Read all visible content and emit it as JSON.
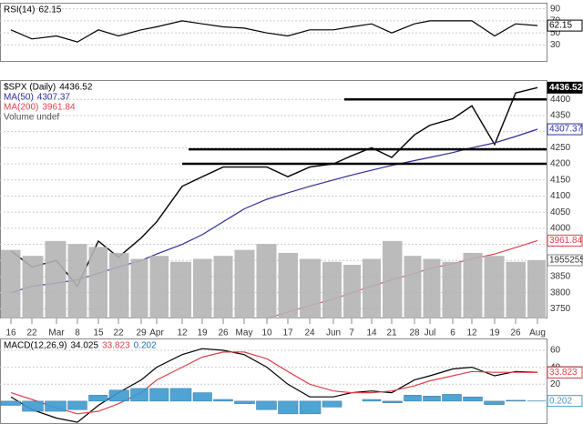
{
  "chart_data": [
    {
      "type": "line",
      "title": "RSI(14)",
      "ylim": [
        2,
        100
      ],
      "yticks": [
        90,
        70,
        50,
        30
      ],
      "grid": true,
      "series": [
        {
          "color": "#000000",
          "values": [
            55,
            40,
            45,
            35,
            55,
            45,
            55,
            60,
            70,
            65,
            60,
            58,
            50,
            45,
            55,
            55,
            60,
            65,
            50,
            65,
            70,
            70,
            70,
            45,
            65,
            62.15
          ]
        }
      ]
    },
    {
      "type": "line",
      "ylim": [
        3720,
        4460
      ],
      "yticks": [
        4400,
        4350,
        4300,
        4250,
        4200,
        4150,
        4100,
        4050,
        4000,
        3950,
        3900,
        3850,
        3800,
        3750
      ],
      "grid": true,
      "y2lim": [
        0,
        8000000
      ],
      "categories": [
        "16",
        "22",
        "Mar",
        "8",
        "15",
        "22",
        "29",
        "Apr",
        "12",
        "19",
        "26",
        "May",
        "10",
        "17",
        "24",
        "Jun",
        "7",
        "14",
        "21",
        "28",
        "Jul",
        "6",
        "12",
        "19",
        "26",
        "Aug"
      ],
      "hlines": [
        4400,
        4245,
        4200
      ],
      "series": [
        {
          "name": "$SPX (Daily)",
          "color": "#000000",
          "values": [
            3930,
            3880,
            3900,
            3820,
            3960,
            3910,
            3970,
            4020,
            4130,
            4160,
            4190,
            4190,
            4190,
            4160,
            4190,
            4200,
            4225,
            4250,
            4220,
            4290,
            4320,
            4340,
            4380,
            4260,
            4420,
            4436.52
          ]
        },
        {
          "name": "MA(50)",
          "color": "#2e2e9a",
          "values": [
            3800,
            3820,
            3830,
            3840,
            3860,
            3880,
            3900,
            3920,
            3950,
            3980,
            4020,
            4060,
            4090,
            4110,
            4130,
            4150,
            4165,
            4180,
            4195,
            4210,
            4220,
            4235,
            4250,
            4265,
            4285,
            4307.37
          ]
        },
        {
          "name": "MA(200)",
          "color": "#e0404a",
          "values": [
            null,
            null,
            null,
            null,
            null,
            null,
            null,
            null,
            null,
            null,
            null,
            null,
            3720,
            3740,
            3760,
            3780,
            3800,
            3820,
            3840,
            3860,
            3875,
            3890,
            3905,
            3920,
            3940,
            3961.84
          ]
        },
        {
          "name": "Volume undef",
          "type": "bar",
          "axis": "y2",
          "color": "#b4b4b4",
          "values": [
            2300000,
            2100000,
            2600000,
            2500000,
            2400000,
            2200000,
            2000000,
            2100000,
            1900000,
            2000000,
            2100000,
            2300000,
            2500000,
            2200000,
            2000000,
            1900000,
            1800000,
            2000000,
            2600000,
            2100000,
            2000000,
            1900000,
            2200000,
            2100000,
            1900000,
            1955255
          ]
        }
      ]
    },
    {
      "type": "line",
      "title": "MACD(12,26,9)",
      "ylim": [
        -27,
        74
      ],
      "yticks": [
        60,
        40,
        20
      ],
      "grid": true,
      "series": [
        {
          "color": "#000000",
          "values": [
            5,
            -10,
            -20,
            -25,
            -5,
            10,
            25,
            40,
            55,
            62,
            60,
            55,
            40,
            20,
            5,
            5,
            10,
            12,
            10,
            25,
            30,
            38,
            40,
            30,
            35,
            34.025
          ]
        },
        {
          "color": "#e0404a",
          "values": [
            10,
            2,
            -8,
            -15,
            -12,
            -3,
            10,
            25,
            40,
            52,
            58,
            58,
            50,
            35,
            20,
            12,
            10,
            10,
            12,
            18,
            24,
            30,
            35,
            34,
            34,
            33.823
          ]
        },
        {
          "type": "bar",
          "color": "#3d9bd0",
          "values": [
            -5,
            -12,
            -12,
            -10,
            7,
            13,
            15,
            15,
            15,
            10,
            2,
            -3,
            -10,
            -15,
            -15,
            -7,
            0,
            2,
            -2,
            7,
            6,
            8,
            5,
            -4,
            1,
            0.202
          ]
        }
      ]
    }
  ]
}
